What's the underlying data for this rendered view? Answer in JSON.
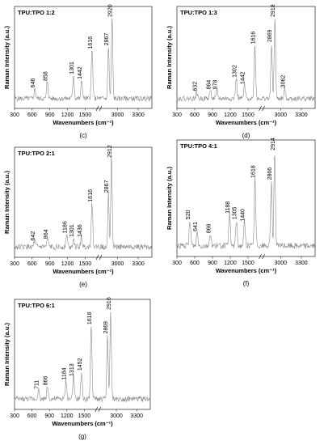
{
  "chart_data": [
    {
      "type": "line",
      "panel_letter": "(c)",
      "title": "TPU:TPO 1:2",
      "xlabel": "Wavenumbers (cm⁻¹)",
      "ylabel": "Raman Intensity (a.u.)",
      "xticks": [
        "300",
        "600",
        "900",
        "1200",
        "1500",
        "3000",
        "3300"
      ],
      "xlim": [
        300,
        3500
      ],
      "axis_break": true,
      "peaks": [
        {
          "x": 646,
          "label": "646",
          "height": 0.12
        },
        {
          "x": 858,
          "label": "858",
          "height": 0.2
        },
        {
          "x": 1301,
          "label": "1301",
          "height": 0.28
        },
        {
          "x": 1442,
          "label": "1442",
          "height": 0.22
        },
        {
          "x": 1616,
          "label": "1616",
          "height": 0.58
        },
        {
          "x": 2867,
          "label": "2867",
          "height": 0.62
        },
        {
          "x": 2920,
          "label": "2920",
          "height": 0.96
        }
      ]
    },
    {
      "type": "line",
      "panel_letter": "(d)",
      "title": "TPU:TPO 1:3",
      "xlabel": "Wavenumbers (cm⁻¹)",
      "ylabel": "Raman Intensity (a.u.)",
      "xticks": [
        "300",
        "600",
        "900",
        "1200",
        "1500",
        "3000",
        "3300"
      ],
      "xlim": [
        300,
        3500
      ],
      "axis_break": true,
      "peaks": [
        {
          "x": 632,
          "label": "632",
          "height": 0.08
        },
        {
          "x": 864,
          "label": "864",
          "height": 0.1
        },
        {
          "x": 978,
          "label": "978",
          "height": 0.1
        },
        {
          "x": 1302,
          "label": "1302",
          "height": 0.24
        },
        {
          "x": 1442,
          "label": "1442",
          "height": 0.16
        },
        {
          "x": 1616,
          "label": "1616",
          "height": 0.64
        },
        {
          "x": 2869,
          "label": "2869",
          "height": 0.66
        },
        {
          "x": 2918,
          "label": "2918",
          "height": 0.96
        },
        {
          "x": 3062,
          "label": "3062",
          "height": 0.12
        }
      ]
    },
    {
      "type": "line",
      "panel_letter": "(e)",
      "title": "TPU:TPO 2:1",
      "xlabel": "Wavenumbers (cm⁻¹)",
      "ylabel": "Raman Intensity (a.u.)",
      "xticks": [
        "300",
        "600",
        "900",
        "1200",
        "1500",
        "3000",
        "3300"
      ],
      "xlim": [
        300,
        3500
      ],
      "axis_break": true,
      "peaks": [
        {
          "x": 642,
          "label": "642",
          "height": 0.06
        },
        {
          "x": 864,
          "label": "864",
          "height": 0.08
        },
        {
          "x": 1186,
          "label": "1186",
          "height": 0.14
        },
        {
          "x": 1301,
          "label": "1301",
          "height": 0.1
        },
        {
          "x": 1436,
          "label": "1436",
          "height": 0.1
        },
        {
          "x": 1616,
          "label": "1616",
          "height": 0.48
        },
        {
          "x": 2867,
          "label": "2867",
          "height": 0.58
        },
        {
          "x": 2912,
          "label": "2912",
          "height": 0.96
        }
      ]
    },
    {
      "type": "line",
      "panel_letter": "(f)",
      "title": "TPU:TPO 4:1",
      "xlabel": "Wavenumbers (cm⁻¹)",
      "ylabel": "Raman Intensity (a.u.)",
      "xticks": [
        "300",
        "600",
        "900",
        "1200",
        "1500",
        "3000",
        "3300"
      ],
      "xlim": [
        300,
        3500
      ],
      "axis_break": true,
      "peaks": [
        {
          "x": 520,
          "label": "520",
          "height": 0.26
        },
        {
          "x": 641,
          "label": "641",
          "height": 0.14
        },
        {
          "x": 866,
          "label": "866",
          "height": 0.12
        },
        {
          "x": 1188,
          "label": "1188",
          "height": 0.32
        },
        {
          "x": 1305,
          "label": "1305",
          "height": 0.26
        },
        {
          "x": 1440,
          "label": "1440",
          "height": 0.24
        },
        {
          "x": 1618,
          "label": "1618",
          "height": 0.68
        },
        {
          "x": 2866,
          "label": "2866",
          "height": 0.66
        },
        {
          "x": 2914,
          "label": "2914",
          "height": 0.96
        }
      ]
    },
    {
      "type": "line",
      "panel_letter": "(g)",
      "title": "TPU:TPO 6:1",
      "xlabel": "Wavenumbers (cm⁻¹)",
      "ylabel": "Raman Intensity (a.u.)",
      "xticks": [
        "300",
        "600",
        "900",
        "1200",
        "1500",
        "3000",
        "3300"
      ],
      "xlim": [
        300,
        3500
      ],
      "axis_break": true,
      "peaks": [
        {
          "x": 711,
          "label": "711",
          "height": 0.1
        },
        {
          "x": 866,
          "label": "866",
          "height": 0.14
        },
        {
          "x": 1184,
          "label": "1184",
          "height": 0.2
        },
        {
          "x": 1313,
          "label": "1313",
          "height": 0.24
        },
        {
          "x": 1452,
          "label": "1452",
          "height": 0.3
        },
        {
          "x": 1618,
          "label": "1618",
          "height": 0.8
        },
        {
          "x": 2869,
          "label": "2869",
          "height": 0.7
        },
        {
          "x": 2916,
          "label": "2916",
          "height": 0.96
        }
      ]
    }
  ]
}
